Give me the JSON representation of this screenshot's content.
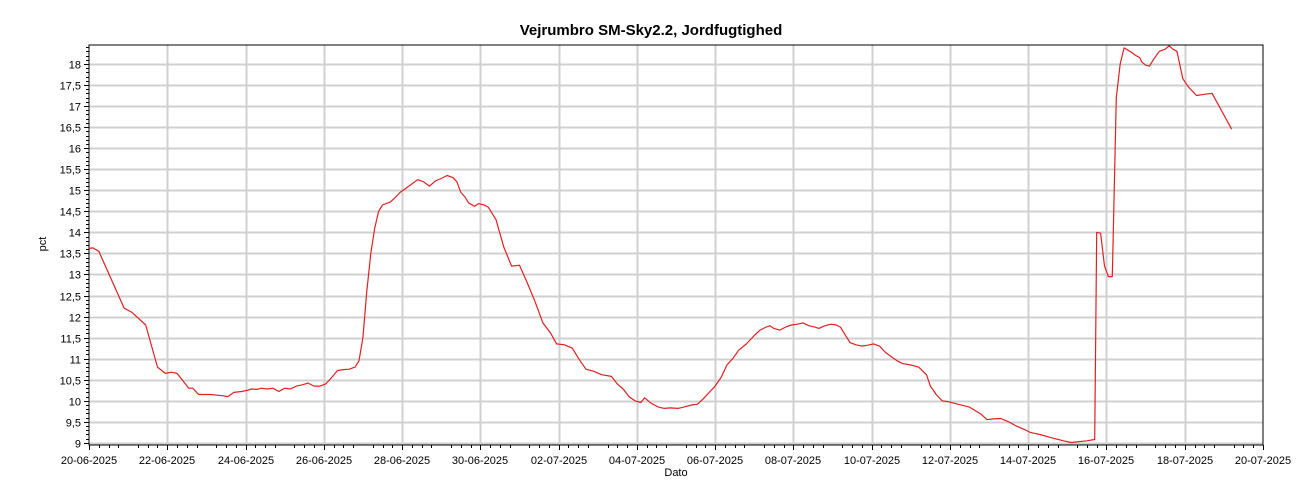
{
  "chart_data": {
    "type": "line",
    "title": "Vejrumbro SM-Sky2.2, Jordfugtighed",
    "xlabel": "Dato",
    "ylabel": "pct",
    "grid": true,
    "legend": "none",
    "xlim": [
      0,
      30
    ],
    "ylim": [
      8.95,
      18.45
    ],
    "x_ticks": [
      {
        "value": 0,
        "label": "20-06-2025"
      },
      {
        "value": 2,
        "label": "22-06-2025"
      },
      {
        "value": 4,
        "label": "24-06-2025"
      },
      {
        "value": 6,
        "label": "26-06-2025"
      },
      {
        "value": 8,
        "label": "28-06-2025"
      },
      {
        "value": 10,
        "label": "30-06-2025"
      },
      {
        "value": 12,
        "label": "02-07-2025"
      },
      {
        "value": 14,
        "label": "04-07-2025"
      },
      {
        "value": 16,
        "label": "06-07-2025"
      },
      {
        "value": 18,
        "label": "08-07-2025"
      },
      {
        "value": 20,
        "label": "10-07-2025"
      },
      {
        "value": 22,
        "label": "12-07-2025"
      },
      {
        "value": 24,
        "label": "14-07-2025"
      },
      {
        "value": 26,
        "label": "16-07-2025"
      },
      {
        "value": 28,
        "label": "18-07-2025"
      },
      {
        "value": 30,
        "label": "20-07-2025"
      }
    ],
    "y_ticks": [
      {
        "value": 9,
        "label": "9"
      },
      {
        "value": 9.5,
        "label": "9,5"
      },
      {
        "value": 10,
        "label": "10"
      },
      {
        "value": 10.5,
        "label": "10,5"
      },
      {
        "value": 11,
        "label": "11"
      },
      {
        "value": 11.5,
        "label": "11,5"
      },
      {
        "value": 12,
        "label": "12"
      },
      {
        "value": 12.5,
        "label": "12,5"
      },
      {
        "value": 13,
        "label": "13"
      },
      {
        "value": 13.5,
        "label": "13,5"
      },
      {
        "value": 14,
        "label": "14"
      },
      {
        "value": 14.5,
        "label": "14,5"
      },
      {
        "value": 15,
        "label": "15"
      },
      {
        "value": 15.5,
        "label": "15,5"
      },
      {
        "value": 16,
        "label": "16"
      },
      {
        "value": 16.5,
        "label": "16,5"
      },
      {
        "value": 17,
        "label": "17"
      },
      {
        "value": 17.5,
        "label": "17,5"
      },
      {
        "value": 18,
        "label": "18"
      }
    ],
    "series": [
      {
        "color": "#e02020",
        "points": [
          [
            0.0,
            13.62
          ],
          [
            0.1,
            13.63
          ],
          [
            0.25,
            13.55
          ],
          [
            0.9,
            12.2
          ],
          [
            1.1,
            12.1
          ],
          [
            1.45,
            11.8
          ],
          [
            1.75,
            10.8
          ],
          [
            1.95,
            10.65
          ],
          [
            2.1,
            10.68
          ],
          [
            2.25,
            10.65
          ],
          [
            2.55,
            10.3
          ],
          [
            2.65,
            10.3
          ],
          [
            2.8,
            10.15
          ],
          [
            3.1,
            10.15
          ],
          [
            3.4,
            10.12
          ],
          [
            3.55,
            10.1
          ],
          [
            3.7,
            10.2
          ],
          [
            3.9,
            10.22
          ],
          [
            4.05,
            10.25
          ],
          [
            4.15,
            10.28
          ],
          [
            4.3,
            10.27
          ],
          [
            4.4,
            10.3
          ],
          [
            4.55,
            10.28
          ],
          [
            4.7,
            10.3
          ],
          [
            4.85,
            10.22
          ],
          [
            5.0,
            10.3
          ],
          [
            5.15,
            10.28
          ],
          [
            5.3,
            10.35
          ],
          [
            5.45,
            10.38
          ],
          [
            5.6,
            10.42
          ],
          [
            5.75,
            10.35
          ],
          [
            5.9,
            10.35
          ],
          [
            6.05,
            10.4
          ],
          [
            6.2,
            10.55
          ],
          [
            6.35,
            10.72
          ],
          [
            6.5,
            10.74
          ],
          [
            6.65,
            10.75
          ],
          [
            6.8,
            10.8
          ],
          [
            6.9,
            10.95
          ],
          [
            7.0,
            11.5
          ],
          [
            7.1,
            12.6
          ],
          [
            7.2,
            13.5
          ],
          [
            7.3,
            14.1
          ],
          [
            7.4,
            14.5
          ],
          [
            7.5,
            14.65
          ],
          [
            7.7,
            14.72
          ],
          [
            7.85,
            14.85
          ],
          [
            7.95,
            14.95
          ],
          [
            8.1,
            15.05
          ],
          [
            8.25,
            15.15
          ],
          [
            8.4,
            15.25
          ],
          [
            8.55,
            15.2
          ],
          [
            8.7,
            15.1
          ],
          [
            8.85,
            15.22
          ],
          [
            9.0,
            15.28
          ],
          [
            9.15,
            15.35
          ],
          [
            9.3,
            15.3
          ],
          [
            9.4,
            15.2
          ],
          [
            9.5,
            14.95
          ],
          [
            9.6,
            14.85
          ],
          [
            9.7,
            14.7
          ],
          [
            9.85,
            14.62
          ],
          [
            9.95,
            14.68
          ],
          [
            10.1,
            14.65
          ],
          [
            10.2,
            14.6
          ],
          [
            10.4,
            14.3
          ],
          [
            10.6,
            13.65
          ],
          [
            10.8,
            13.2
          ],
          [
            11.0,
            13.22
          ],
          [
            11.2,
            12.8
          ],
          [
            11.4,
            12.35
          ],
          [
            11.6,
            11.85
          ],
          [
            11.8,
            11.6
          ],
          [
            11.95,
            11.35
          ],
          [
            12.15,
            11.33
          ],
          [
            12.35,
            11.25
          ],
          [
            12.55,
            10.95
          ],
          [
            12.7,
            10.75
          ],
          [
            12.9,
            10.7
          ],
          [
            13.1,
            10.62
          ],
          [
            13.35,
            10.58
          ],
          [
            13.5,
            10.4
          ],
          [
            13.65,
            10.28
          ],
          [
            13.8,
            10.1
          ],
          [
            13.95,
            10.0
          ],
          [
            14.1,
            9.96
          ],
          [
            14.2,
            10.07
          ],
          [
            14.35,
            9.95
          ],
          [
            14.55,
            9.85
          ],
          [
            14.7,
            9.82
          ],
          [
            14.85,
            9.83
          ],
          [
            15.05,
            9.82
          ],
          [
            15.2,
            9.85
          ],
          [
            15.4,
            9.9
          ],
          [
            15.55,
            9.92
          ],
          [
            15.7,
            10.05
          ],
          [
            15.85,
            10.2
          ],
          [
            16.0,
            10.35
          ],
          [
            16.15,
            10.55
          ],
          [
            16.3,
            10.85
          ],
          [
            16.45,
            11.0
          ],
          [
            16.6,
            11.2
          ],
          [
            16.8,
            11.35
          ],
          [
            17.0,
            11.55
          ],
          [
            17.15,
            11.68
          ],
          [
            17.3,
            11.75
          ],
          [
            17.4,
            11.78
          ],
          [
            17.5,
            11.72
          ],
          [
            17.65,
            11.68
          ],
          [
            17.8,
            11.75
          ],
          [
            17.95,
            11.8
          ],
          [
            18.1,
            11.82
          ],
          [
            18.25,
            11.85
          ],
          [
            18.4,
            11.78
          ],
          [
            18.55,
            11.75
          ],
          [
            18.65,
            11.72
          ],
          [
            18.8,
            11.78
          ],
          [
            18.95,
            11.82
          ],
          [
            19.1,
            11.8
          ],
          [
            19.2,
            11.75
          ],
          [
            19.3,
            11.6
          ],
          [
            19.45,
            11.38
          ],
          [
            19.6,
            11.33
          ],
          [
            19.75,
            11.3
          ],
          [
            19.9,
            11.32
          ],
          [
            20.05,
            11.35
          ],
          [
            20.2,
            11.3
          ],
          [
            20.35,
            11.15
          ],
          [
            20.5,
            11.05
          ],
          [
            20.65,
            10.95
          ],
          [
            20.8,
            10.88
          ],
          [
            21.0,
            10.85
          ],
          [
            21.2,
            10.8
          ],
          [
            21.4,
            10.62
          ],
          [
            21.5,
            10.35
          ],
          [
            21.65,
            10.15
          ],
          [
            21.8,
            10.0
          ],
          [
            21.95,
            9.98
          ],
          [
            22.2,
            9.92
          ],
          [
            22.5,
            9.85
          ],
          [
            22.8,
            9.68
          ],
          [
            22.95,
            9.55
          ],
          [
            23.1,
            9.57
          ],
          [
            23.3,
            9.58
          ],
          [
            23.5,
            9.5
          ],
          [
            23.7,
            9.4
          ],
          [
            23.9,
            9.32
          ],
          [
            24.05,
            9.25
          ],
          [
            24.3,
            9.2
          ],
          [
            24.6,
            9.12
          ],
          [
            24.9,
            9.05
          ],
          [
            25.1,
            9.01
          ],
          [
            25.5,
            9.05
          ],
          [
            25.7,
            9.08
          ],
          [
            25.75,
            14.0
          ],
          [
            25.85,
            13.98
          ],
          [
            25.95,
            13.2
          ],
          [
            26.05,
            12.95
          ],
          [
            26.15,
            12.95
          ],
          [
            26.25,
            17.2
          ],
          [
            26.35,
            18.0
          ],
          [
            26.45,
            18.38
          ],
          [
            26.6,
            18.3
          ],
          [
            26.75,
            18.2
          ],
          [
            26.85,
            18.15
          ],
          [
            26.9,
            18.05
          ],
          [
            27.0,
            17.97
          ],
          [
            27.1,
            17.95
          ],
          [
            27.2,
            18.1
          ],
          [
            27.35,
            18.3
          ],
          [
            27.5,
            18.35
          ],
          [
            27.6,
            18.43
          ],
          [
            27.7,
            18.35
          ],
          [
            27.8,
            18.3
          ],
          [
            27.95,
            17.65
          ],
          [
            28.1,
            17.45
          ],
          [
            28.3,
            17.25
          ],
          [
            28.5,
            17.28
          ],
          [
            28.7,
            17.3
          ],
          [
            29.2,
            16.45
          ]
        ]
      }
    ]
  }
}
